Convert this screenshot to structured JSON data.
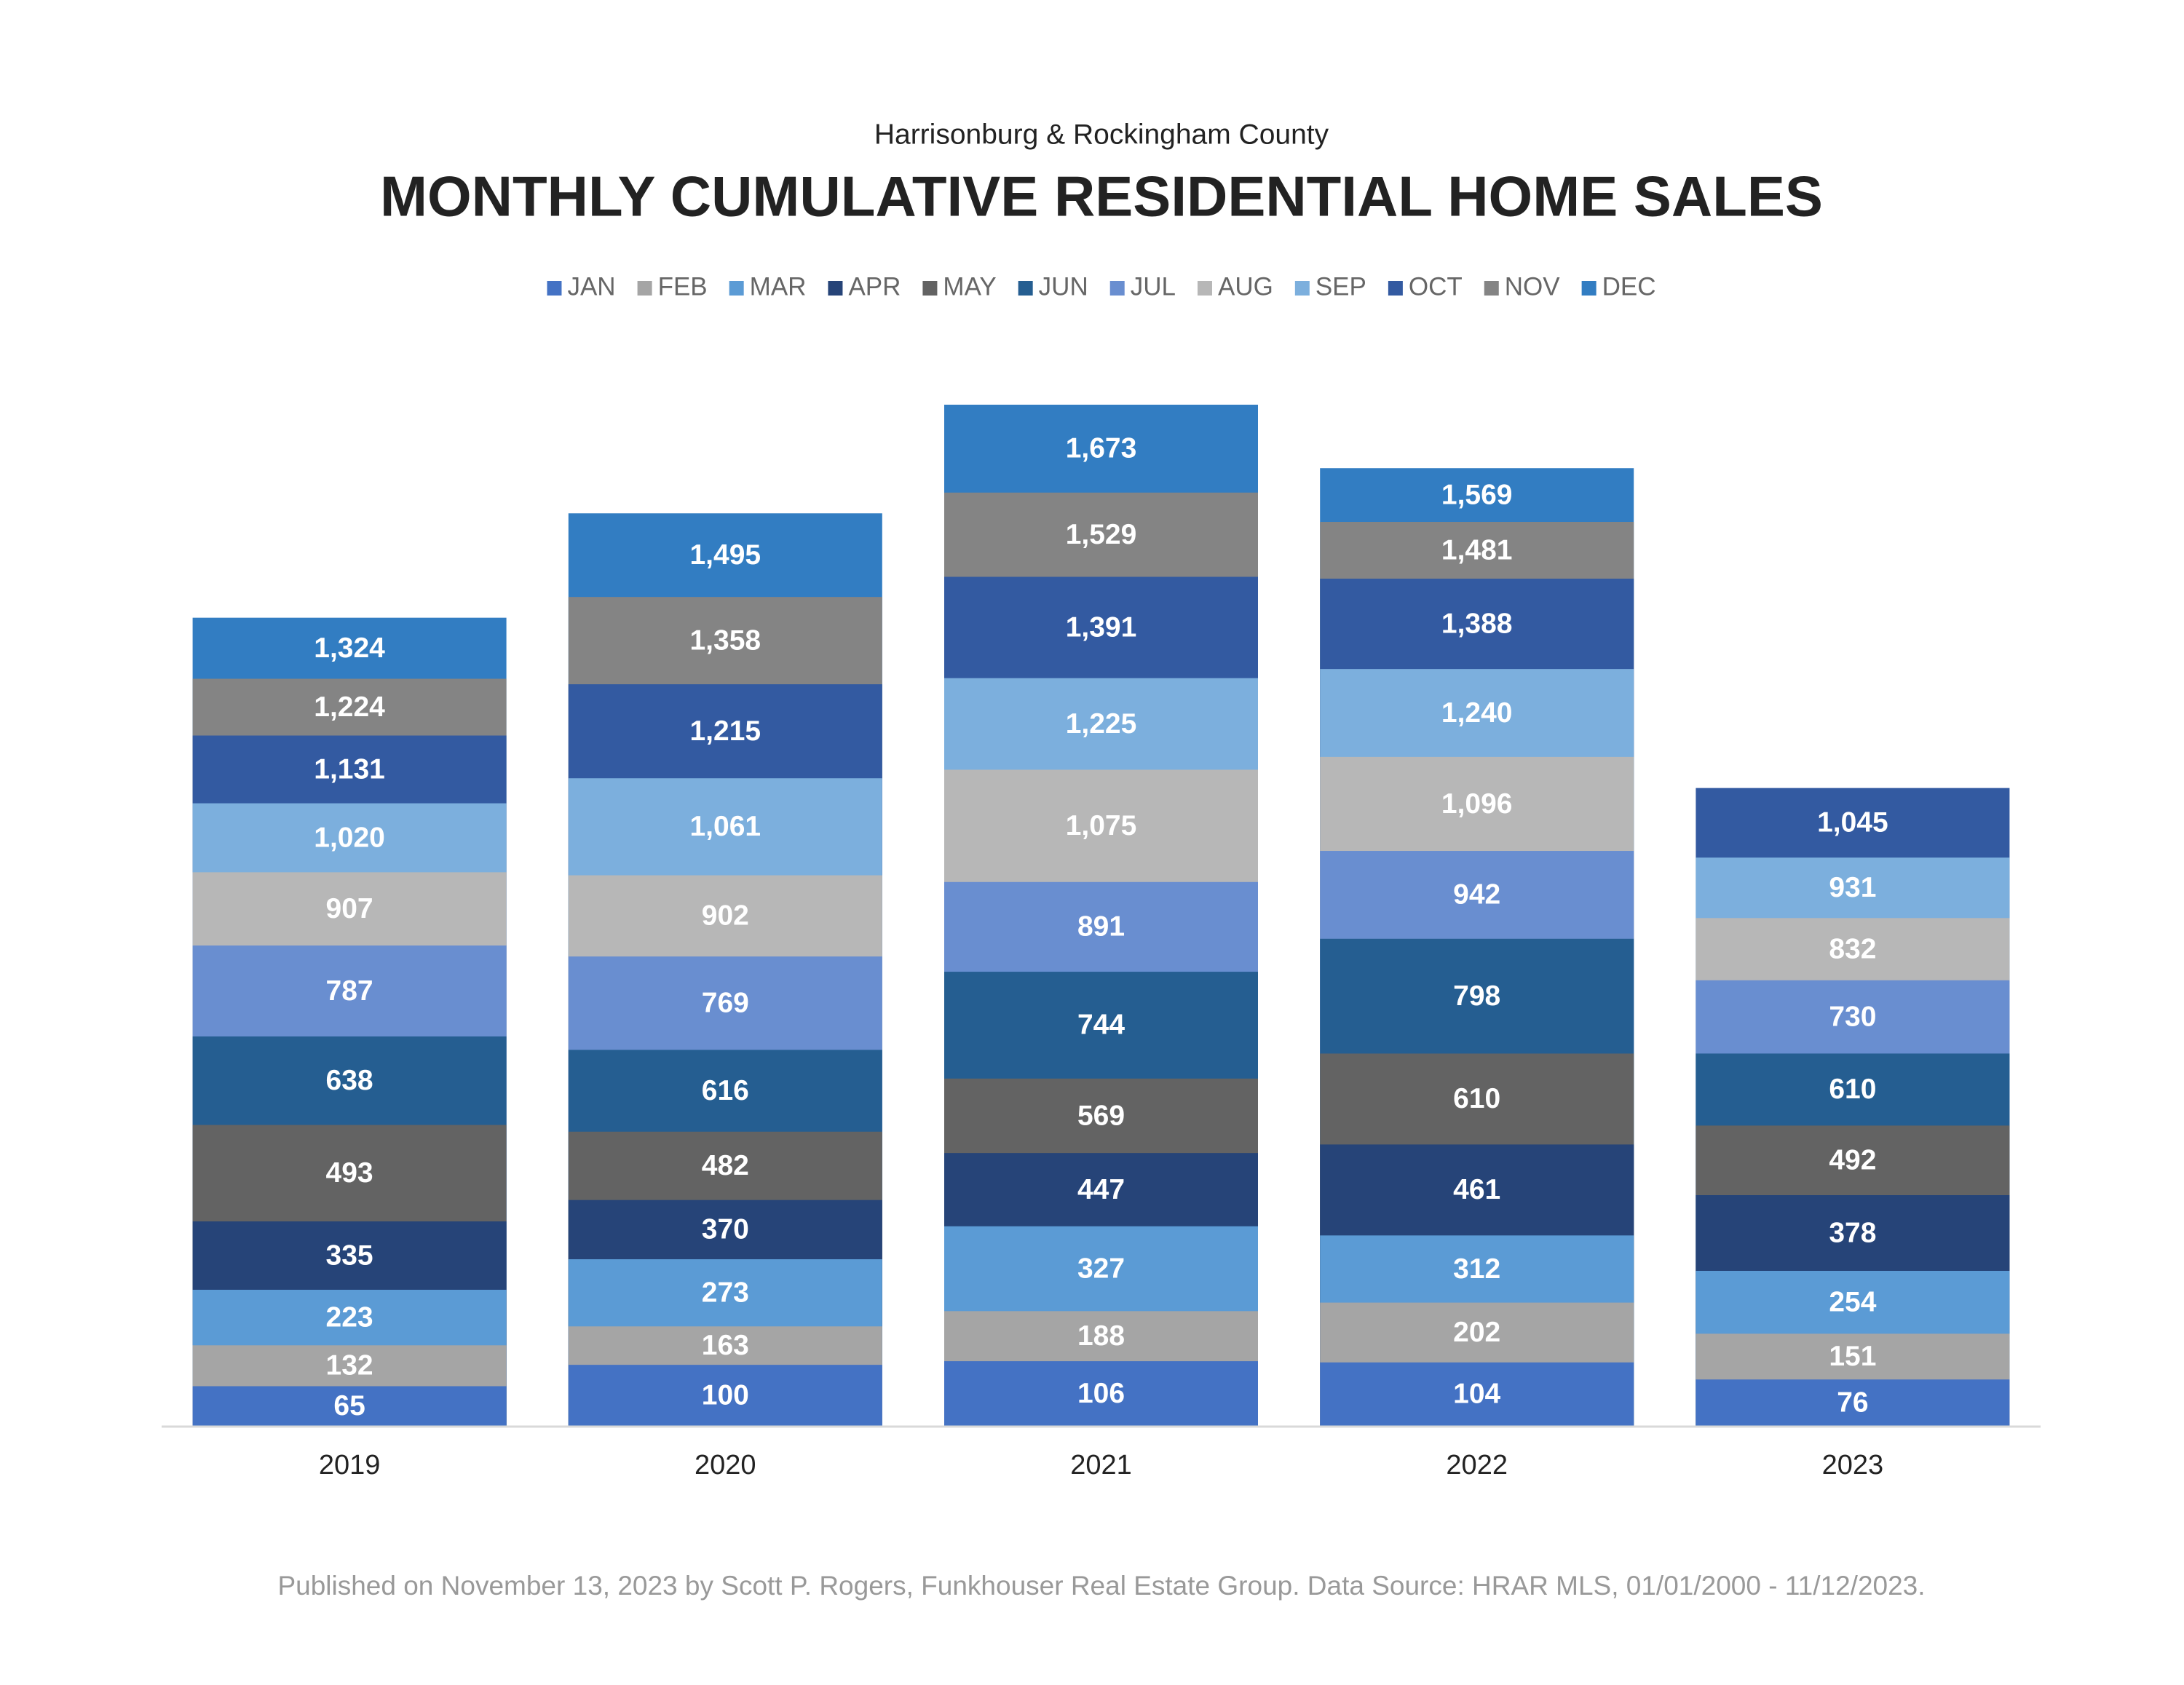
{
  "chart_data": {
    "type": "bar",
    "subtitle": "Harrisonburg & Rockingham County",
    "title": "MONTHLY CUMULATIVE RESIDENTIAL HOME SALES",
    "categories": [
      "2019",
      "2020",
      "2021",
      "2022",
      "2023"
    ],
    "series": [
      {
        "name": "JAN",
        "color": "#4472c4",
        "values": [
          65,
          100,
          106,
          104,
          76
        ],
        "value_labels": [
          "65",
          "100",
          "106",
          "104",
          "76"
        ]
      },
      {
        "name": "FEB",
        "color": "#a5a5a5",
        "values": [
          132,
          163,
          188,
          202,
          151
        ],
        "value_labels": [
          "132",
          "163",
          "188",
          "202",
          "151"
        ]
      },
      {
        "name": "MAR",
        "color": "#5b9bd5",
        "values": [
          223,
          273,
          327,
          312,
          254
        ],
        "value_labels": [
          "223",
          "273",
          "327",
          "312",
          "254"
        ]
      },
      {
        "name": "APR",
        "color": "#264478",
        "values": [
          335,
          370,
          447,
          461,
          378
        ],
        "value_labels": [
          "335",
          "370",
          "447",
          "461",
          "378"
        ]
      },
      {
        "name": "MAY",
        "color": "#636363",
        "values": [
          493,
          482,
          569,
          610,
          492
        ],
        "value_labels": [
          "493",
          "482",
          "569",
          "610",
          "492"
        ]
      },
      {
        "name": "JUN",
        "color": "#255e91",
        "values": [
          638,
          616,
          744,
          798,
          610
        ],
        "value_labels": [
          "638",
          "616",
          "744",
          "798",
          "610"
        ]
      },
      {
        "name": "JUL",
        "color": "#698ed0",
        "values": [
          787,
          769,
          891,
          942,
          730
        ],
        "value_labels": [
          "787",
          "769",
          "891",
          "942",
          "730"
        ]
      },
      {
        "name": "AUG",
        "color": "#b7b7b7",
        "values": [
          907,
          902,
          1075,
          1096,
          832
        ],
        "value_labels": [
          "907",
          "902",
          "1,075",
          "1,096",
          "832"
        ]
      },
      {
        "name": "SEP",
        "color": "#7cafdd",
        "values": [
          1020,
          1061,
          1225,
          1240,
          931
        ],
        "value_labels": [
          "1,020",
          "1,061",
          "1,225",
          "1,240",
          "931"
        ]
      },
      {
        "name": "OCT",
        "color": "#335aa1",
        "values": [
          1131,
          1215,
          1391,
          1388,
          1045
        ],
        "value_labels": [
          "1,131",
          "1,215",
          "1,391",
          "1,388",
          "1,045"
        ]
      },
      {
        "name": "NOV",
        "color": "#848484",
        "values": [
          1224,
          1358,
          1529,
          1481,
          null
        ],
        "value_labels": [
          "1,224",
          "1,358",
          "1,529",
          "1,481",
          null
        ]
      },
      {
        "name": "DEC",
        "color": "#327dc2",
        "values": [
          1324,
          1495,
          1673,
          1569,
          null
        ],
        "value_labels": [
          "1,324",
          "1,495",
          "1,673",
          "1,569",
          null
        ]
      }
    ],
    "footnote": "Published on November 13, 2023 by Scott P. Rogers, Funkhouser Real Estate Group. Data Source: HRAR MLS, 01/01/2000 - 11/12/2023."
  }
}
